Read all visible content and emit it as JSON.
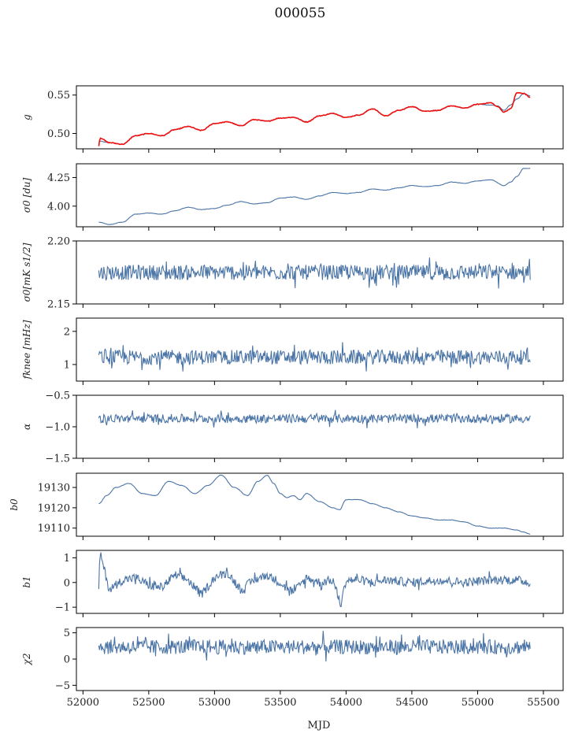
{
  "title": "000055",
  "chart_data": [
    {
      "type": "line",
      "key": "g",
      "ylabel": "g",
      "ylim": [
        0.48,
        0.562
      ],
      "yticks": [
        "0.50",
        "0.55"
      ],
      "ytick_values": [
        0.5,
        0.55
      ],
      "series": [
        {
          "color": "#4a74a6",
          "x": [
            52120,
            52200,
            52300,
            52400,
            52500,
            52600,
            52700,
            52800,
            52900,
            53000,
            53100,
            53200,
            53300,
            53400,
            53500,
            53600,
            53700,
            53800,
            53900,
            54000,
            54100,
            54200,
            54300,
            54400,
            54500,
            54600,
            54700,
            54800,
            54900,
            55000,
            55100,
            55150,
            55200,
            55250,
            55300,
            55350,
            55400
          ],
          "y": [
            0.49,
            0.488,
            0.486,
            0.497,
            0.5,
            0.497,
            0.505,
            0.509,
            0.504,
            0.513,
            0.515,
            0.51,
            0.518,
            0.516,
            0.52,
            0.521,
            0.515,
            0.523,
            0.526,
            0.521,
            0.524,
            0.532,
            0.523,
            0.53,
            0.535,
            0.529,
            0.53,
            0.536,
            0.533,
            0.538,
            0.537,
            0.536,
            0.53,
            0.537,
            0.545,
            0.552,
            0.549
          ]
        },
        {
          "color": "#ee1111",
          "x": [
            52120,
            52130,
            52200,
            52300,
            52400,
            52500,
            52600,
            52700,
            52800,
            52900,
            53000,
            53100,
            53200,
            53300,
            53400,
            53500,
            53600,
            53700,
            53800,
            53900,
            54000,
            54100,
            54200,
            54300,
            54400,
            54500,
            54600,
            54700,
            54800,
            54900,
            55000,
            55100,
            55150,
            55200,
            55250,
            55300,
            55350,
            55400
          ],
          "y": [
            0.484,
            0.494,
            0.488,
            0.486,
            0.497,
            0.5,
            0.497,
            0.505,
            0.509,
            0.504,
            0.513,
            0.515,
            0.51,
            0.518,
            0.516,
            0.52,
            0.521,
            0.515,
            0.523,
            0.526,
            0.521,
            0.524,
            0.532,
            0.523,
            0.53,
            0.535,
            0.529,
            0.53,
            0.536,
            0.533,
            0.538,
            0.54,
            0.535,
            0.528,
            0.532,
            0.553,
            0.552,
            0.547
          ]
        }
      ]
    },
    {
      "type": "line",
      "key": "sigma0",
      "ylabel": "σ0 [du]",
      "ylim": [
        3.82,
        4.37
      ],
      "yticks": [
        "4.00",
        "4.25"
      ],
      "ytick_values": [
        4.0,
        4.25
      ],
      "series": [
        {
          "color": "#4a74a6",
          "x": [
            52120,
            52200,
            52300,
            52400,
            52500,
            52600,
            52700,
            52800,
            52900,
            53000,
            53100,
            53200,
            53300,
            53400,
            53500,
            53600,
            53700,
            53800,
            53900,
            54000,
            54100,
            54200,
            54300,
            54400,
            54500,
            54600,
            54700,
            54800,
            54900,
            55000,
            55100,
            55200,
            55250,
            55300,
            55350,
            55400
          ],
          "y": [
            3.86,
            3.84,
            3.86,
            3.93,
            3.94,
            3.93,
            3.96,
            3.99,
            3.97,
            3.98,
            4.01,
            4.04,
            4.02,
            4.03,
            4.07,
            4.08,
            4.06,
            4.09,
            4.12,
            4.11,
            4.12,
            4.15,
            4.14,
            4.16,
            4.18,
            4.17,
            4.18,
            4.21,
            4.2,
            4.22,
            4.23,
            4.18,
            4.21,
            4.26,
            4.33,
            4.33
          ]
        }
      ]
    },
    {
      "type": "line",
      "key": "sigma_mk",
      "ylabel": "σ0[mK s1/2]",
      "ylim": [
        2.15,
        2.2
      ],
      "yticks": [
        "2.15",
        "2.20"
      ],
      "ytick_values": [
        2.15,
        2.2
      ],
      "noise": {
        "base": 2.175,
        "amp": 0.006
      },
      "series": [
        {
          "color": "#4a74a6",
          "x": [
            52120,
            55400
          ],
          "y": [
            2.175,
            2.175
          ]
        }
      ]
    },
    {
      "type": "line",
      "key": "fknee",
      "ylabel": "fknee [mHz]",
      "ylim": [
        0.5,
        2.4
      ],
      "yticks": [
        "1",
        "2"
      ],
      "ytick_values": [
        1,
        2
      ],
      "noise": {
        "base": 1.22,
        "amp": 0.22
      },
      "series": [
        {
          "color": "#4a74a6",
          "x": [
            52120,
            55400
          ],
          "y": [
            1.22,
            1.22
          ]
        }
      ]
    },
    {
      "type": "line",
      "key": "alpha",
      "ylabel": "α",
      "ylim": [
        -1.5,
        -0.5
      ],
      "yticks": [
        "−1.5",
        "−1.0",
        "−0.5"
      ],
      "ytick_values": [
        -1.5,
        -1.0,
        -0.5
      ],
      "noise": {
        "base": -0.87,
        "amp": 0.07
      },
      "series": [
        {
          "color": "#4a74a6",
          "x": [
            52120,
            55400
          ],
          "y": [
            -0.87,
            -0.87
          ]
        }
      ]
    },
    {
      "type": "line",
      "key": "b0",
      "ylabel": "b0",
      "ylim": [
        19106,
        19137
      ],
      "yticks": [
        "19110",
        "19120",
        "19130"
      ],
      "ytick_values": [
        19110,
        19120,
        19130
      ],
      "series": [
        {
          "color": "#4a74a6",
          "x": [
            52120,
            52180,
            52250,
            52350,
            52450,
            52550,
            52650,
            52750,
            52850,
            52950,
            53050,
            53150,
            53250,
            53330,
            53400,
            53450,
            53500,
            53550,
            53600,
            53650,
            53700,
            53800,
            53900,
            53950,
            54000,
            54100,
            54200,
            54300,
            54400,
            54500,
            54600,
            54700,
            54800,
            54900,
            55000,
            55100,
            55200,
            55300,
            55350,
            55400
          ],
          "y": [
            19122,
            19126,
            19130,
            19132,
            19127,
            19126,
            19133,
            19131,
            19127,
            19131,
            19136,
            19130,
            19126,
            19133,
            19136,
            19132,
            19127,
            19125,
            19126,
            19124,
            19127,
            19123,
            19120,
            19119,
            19124,
            19124,
            19122,
            19120,
            19118,
            19116,
            19115,
            19114,
            19114,
            19113,
            19111,
            19110,
            19110,
            19109,
            19108,
            19107
          ]
        }
      ]
    },
    {
      "type": "line",
      "key": "b1",
      "ylabel": "b1",
      "ylim": [
        -1.25,
        1.3
      ],
      "yticks": [
        "−1",
        "0",
        "1"
      ],
      "ytick_values": [
        -1,
        0,
        1
      ],
      "noise": {
        "base": 0.05,
        "amp": 0.18
      },
      "series": [
        {
          "color": "#4a74a6",
          "x": [
            52120,
            52130,
            52200,
            52300,
            52400,
            52500,
            52600,
            52700,
            52800,
            52900,
            53000,
            53100,
            53200,
            53300,
            53400,
            53500,
            53600,
            53700,
            53800,
            53900,
            53960,
            54000,
            54100,
            54200,
            54300,
            54500,
            54700,
            54900,
            55100,
            55300,
            55400
          ],
          "y": [
            -0.2,
            1.2,
            -0.3,
            0.1,
            0.2,
            -0.1,
            -0.2,
            0.3,
            0.1,
            -0.5,
            0.2,
            0.4,
            -0.3,
            0.1,
            0.3,
            0.0,
            -0.4,
            0.2,
            0.0,
            0.1,
            -0.9,
            0.1,
            0.1,
            0.0,
            0.1,
            0.0,
            0.1,
            0.0,
            0.1,
            0.1,
            0.0
          ]
        }
      ]
    },
    {
      "type": "line",
      "key": "chi2",
      "ylabel": "χ2",
      "ylim": [
        -6,
        6
      ],
      "yticks": [
        "−5",
        "0",
        "5"
      ],
      "ytick_values": [
        -5,
        0,
        5
      ],
      "noise": {
        "base": 2.3,
        "amp": 1.4
      },
      "series": [
        {
          "color": "#4a74a6",
          "x": [
            52120,
            55400
          ],
          "y": [
            2.3,
            2.3
          ]
        }
      ]
    }
  ],
  "x_axis": {
    "label": "MJD",
    "xlim": [
      51950,
      55650
    ],
    "ticks": [
      "52000",
      "52500",
      "53000",
      "53500",
      "54000",
      "54500",
      "55000",
      "55500"
    ],
    "tick_values": [
      52000,
      52500,
      53000,
      53500,
      54000,
      54500,
      55000,
      55500
    ]
  }
}
